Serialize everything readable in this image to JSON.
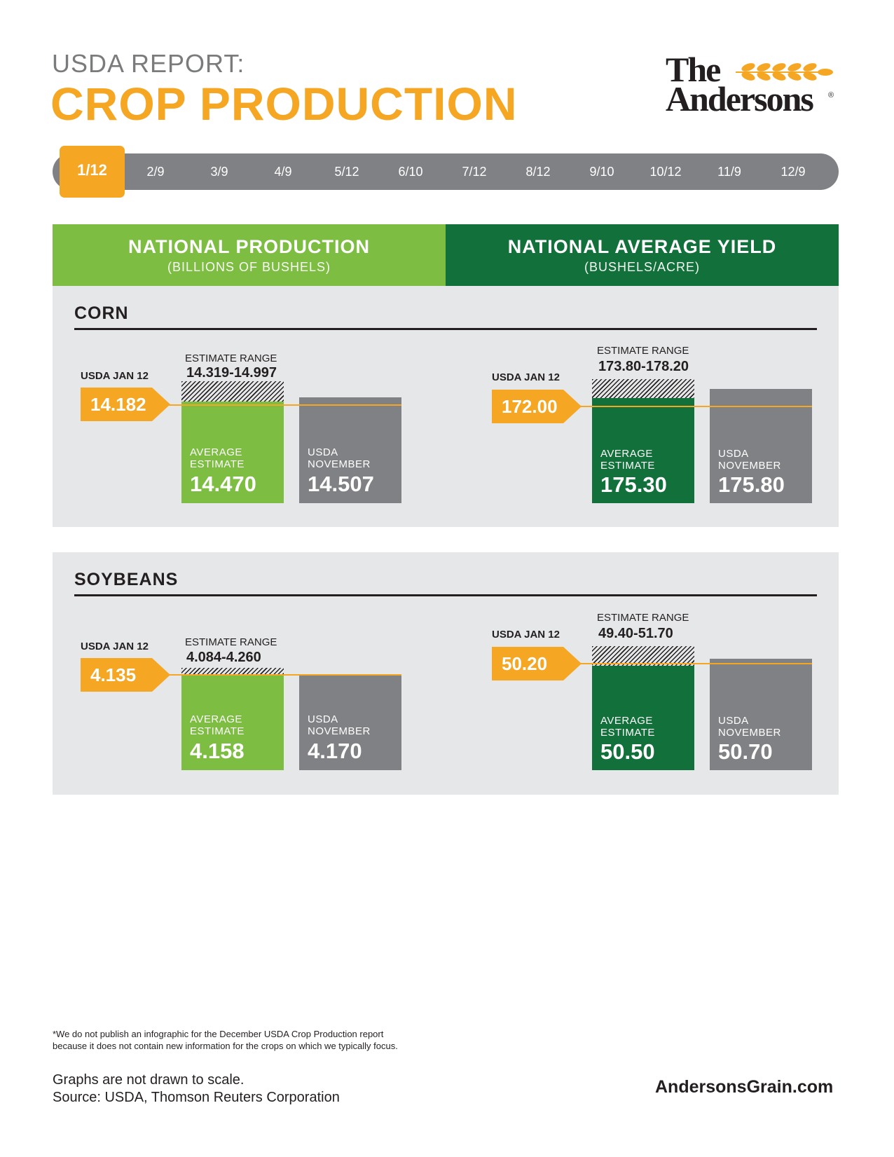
{
  "header": {
    "eyebrow": "USDA REPORT:",
    "title": "CROP PRODUCTION",
    "logo_line1": "The",
    "logo_line2": "Andersons",
    "logo_mark": "®"
  },
  "timeline": {
    "items": [
      "1/12",
      "2/9",
      "3/9",
      "4/9",
      "5/12",
      "6/10",
      "7/12",
      "8/12",
      "9/10",
      "10/12",
      "11/9",
      "12/9"
    ],
    "active": "1/12"
  },
  "columns": {
    "production": {
      "title": "NATIONAL PRODUCTION",
      "subtitle": "(BILLIONS OF BUSHELS)"
    },
    "yield": {
      "title": "NATIONAL AVERAGE YIELD",
      "subtitle": "(BUSHELS/ACRE)"
    }
  },
  "labels": {
    "usda_label": "USDA JAN 12",
    "range_label": "ESTIMATE RANGE",
    "avg_line1": "AVERAGE",
    "avg_line2": "ESTIMATE",
    "nov_line1": "USDA",
    "nov_line2": "NOVEMBER"
  },
  "colors": {
    "orange": "#f5a623",
    "light_green": "#7dbd42",
    "dark_green": "#12703a",
    "gray": "#808184",
    "panel": "#e6e7e8"
  },
  "chart_data": [
    {
      "type": "bar",
      "crop": "CORN",
      "metric": "production",
      "usda_jan12": "14.182",
      "estimate_range": "14.319-14.997",
      "range": [
        14.319,
        14.997
      ],
      "categories": [
        "AVERAGE ESTIMATE",
        "USDA NOVEMBER"
      ],
      "values": [
        14.47,
        14.507
      ],
      "value_labels": [
        "14.470",
        "14.507"
      ]
    },
    {
      "type": "bar",
      "crop": "CORN",
      "metric": "yield",
      "usda_jan12": "172.00",
      "estimate_range": "173.80-178.20",
      "range": [
        173.8,
        178.2
      ],
      "categories": [
        "AVERAGE ESTIMATE",
        "USDA NOVEMBER"
      ],
      "values": [
        175.3,
        175.8
      ],
      "value_labels": [
        "175.30",
        "175.80"
      ]
    },
    {
      "type": "bar",
      "crop": "SOYBEANS",
      "metric": "production",
      "usda_jan12": "4.135",
      "estimate_range": "4.084-4.260",
      "range": [
        4.084,
        4.26
      ],
      "categories": [
        "AVERAGE ESTIMATE",
        "USDA NOVEMBER"
      ],
      "values": [
        4.158,
        4.17
      ],
      "value_labels": [
        "4.158",
        "4.170"
      ]
    },
    {
      "type": "bar",
      "crop": "SOYBEANS",
      "metric": "yield",
      "usda_jan12": "50.20",
      "estimate_range": "49.40-51.70",
      "range": [
        49.4,
        51.7
      ],
      "categories": [
        "AVERAGE ESTIMATE",
        "USDA NOVEMBER"
      ],
      "values": [
        50.5,
        50.7
      ],
      "value_labels": [
        "50.50",
        "50.70"
      ]
    }
  ],
  "footer": {
    "footnote_line1": "*We do not publish an infographic for the December USDA Crop Production report",
    "footnote_line2": "because it does not contain new information for the crops on which we typically focus.",
    "scale_note": "Graphs are not drawn to scale.",
    "source": "Source: USDA, Thomson Reuters Corporation",
    "website": "AndersonsGrain.com"
  }
}
